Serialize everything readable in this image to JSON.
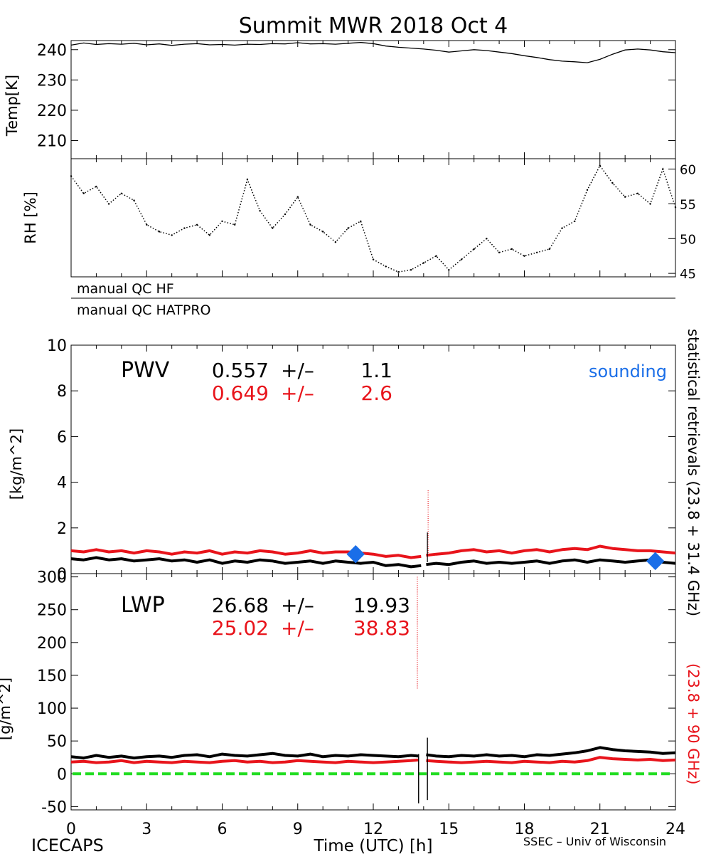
{
  "title": "Summit MWR 2018 Oct  4",
  "footer": {
    "left": "ICECAPS",
    "right": "SSEC – Univ of Wisconsin"
  },
  "right_labels": {
    "black": "statistical retrievals (23.8 + 31.4 GHz)",
    "red": "(23.8 + 90 GHz)"
  },
  "qc_rows": [
    "manual QC HF",
    "manual QC HATPRO"
  ],
  "colors": {
    "black": "#000000",
    "red": "#e8141b",
    "green": "#22dd22",
    "blue": "#1a6ee8"
  },
  "chart_data": [
    {
      "type": "line",
      "panel": "temperature",
      "ylabel": "Temp[K]",
      "ylim": [
        204,
        243
      ],
      "yticks": [
        210,
        220,
        230,
        240
      ],
      "xlim": [
        0,
        24
      ],
      "series": [
        {
          "color": "black",
          "x": [
            0,
            0.5,
            1,
            1.5,
            2,
            2.5,
            3,
            3.5,
            4,
            4.5,
            5,
            5.5,
            6,
            6.5,
            7,
            7.5,
            8,
            8.5,
            9,
            9.5,
            10,
            10.5,
            11,
            11.5,
            12,
            12.5,
            13,
            13.5,
            14,
            14.5,
            15,
            15.5,
            16,
            16.5,
            17,
            17.5,
            18,
            18.5,
            19,
            19.5,
            20,
            20.5,
            21,
            21.5,
            22,
            22.5,
            23,
            23.5,
            24
          ],
          "y": [
            241.5,
            242.2,
            241.7,
            242.0,
            241.8,
            242.1,
            241.6,
            241.9,
            241.4,
            241.8,
            242.0,
            241.6,
            241.7,
            241.5,
            241.8,
            241.7,
            242.0,
            241.9,
            242.3,
            241.9,
            242.0,
            241.8,
            242.1,
            242.4,
            242.0,
            241.2,
            240.8,
            240.5,
            240.2,
            239.8,
            239.2,
            239.6,
            240.0,
            239.7,
            239.2,
            238.7,
            238.0,
            237.4,
            236.7,
            236.2,
            236.0,
            235.7,
            236.8,
            238.5,
            239.9,
            240.2,
            239.9,
            239.3,
            239.0
          ]
        }
      ]
    },
    {
      "type": "scatter",
      "panel": "relative humidity",
      "ylabel": "RH [%]",
      "ylim": [
        44.5,
        61.5
      ],
      "yticks": [
        45,
        50,
        55,
        60
      ],
      "xlim": [
        0,
        24
      ],
      "series": [
        {
          "color": "black",
          "x": [
            0,
            0.5,
            1,
            1.5,
            2,
            2.5,
            3,
            3.5,
            4,
            4.5,
            5,
            5.5,
            6,
            6.5,
            7,
            7.5,
            8,
            8.5,
            9,
            9.5,
            10,
            10.5,
            11,
            11.5,
            12,
            12.5,
            13,
            13.5,
            14,
            14.5,
            15,
            15.5,
            16,
            16.5,
            17,
            17.5,
            18,
            18.5,
            19,
            19.5,
            20,
            20.5,
            21,
            21.5,
            22,
            22.5,
            23,
            23.5,
            24
          ],
          "y": [
            59.0,
            56.5,
            57.5,
            55.0,
            56.5,
            55.5,
            52.0,
            51.0,
            50.5,
            51.5,
            52.0,
            50.5,
            52.5,
            52.0,
            58.5,
            54.0,
            51.5,
            53.5,
            56.0,
            52.0,
            51.0,
            49.5,
            51.5,
            52.5,
            47.0,
            46.0,
            45.2,
            45.5,
            46.5,
            47.5,
            45.5,
            47.0,
            48.5,
            50.0,
            48.0,
            48.5,
            47.5,
            48.0,
            48.5,
            51.5,
            52.5,
            57.0,
            60.5,
            58.0,
            56.0,
            56.5,
            55.0,
            60.0,
            54.5
          ]
        }
      ]
    },
    {
      "type": "line",
      "panel": "PWV",
      "label": "PWV",
      "ylabel": "[kg/m^2]",
      "ylim": [
        0,
        10
      ],
      "yticks": [
        0,
        2,
        4,
        6,
        8,
        10
      ],
      "xlim": [
        0,
        24
      ],
      "stats": [
        {
          "color": "black",
          "mean": "0.557",
          "pm": "+/–",
          "sd": "1.1"
        },
        {
          "color": "red",
          "mean": "0.649",
          "pm": "+/–",
          "sd": "2.6"
        }
      ],
      "legend": {
        "text": "sounding",
        "color": "blue",
        "position": "top-right"
      },
      "gap": [
        13.9,
        14.1
      ],
      "spike": {
        "x": 14.15,
        "black_max": 1.8,
        "red_max": 3.7
      },
      "series": [
        {
          "color": "black",
          "x": [
            0,
            0.5,
            1,
            1.5,
            2,
            2.5,
            3,
            3.5,
            4,
            4.5,
            5,
            5.5,
            6,
            6.5,
            7,
            7.5,
            8,
            8.5,
            9,
            9.5,
            10,
            10.5,
            11,
            11.5,
            12,
            12.5,
            13,
            13.5,
            13.9,
            14.1,
            14.5,
            15,
            15.5,
            16,
            16.5,
            17,
            17.5,
            18,
            18.5,
            19,
            19.5,
            20,
            20.5,
            21,
            21.5,
            22,
            22.5,
            23,
            23.5,
            24
          ],
          "y": [
            0.65,
            0.6,
            0.7,
            0.6,
            0.65,
            0.55,
            0.6,
            0.65,
            0.55,
            0.6,
            0.5,
            0.6,
            0.45,
            0.55,
            0.5,
            0.6,
            0.55,
            0.45,
            0.5,
            0.55,
            0.45,
            0.55,
            0.5,
            0.45,
            0.5,
            0.35,
            0.4,
            0.3,
            0.35,
            0.4,
            0.45,
            0.4,
            0.5,
            0.55,
            0.45,
            0.5,
            0.45,
            0.5,
            0.55,
            0.45,
            0.55,
            0.6,
            0.5,
            0.6,
            0.55,
            0.5,
            0.55,
            0.6,
            0.5,
            0.45
          ]
        },
        {
          "color": "red",
          "x": [
            0,
            0.5,
            1,
            1.5,
            2,
            2.5,
            3,
            3.5,
            4,
            4.5,
            5,
            5.5,
            6,
            6.5,
            7,
            7.5,
            8,
            8.5,
            9,
            9.5,
            10,
            10.5,
            11,
            11.5,
            12,
            12.5,
            13,
            13.5,
            13.9,
            14.1,
            14.5,
            15,
            15.5,
            16,
            16.5,
            17,
            17.5,
            18,
            18.5,
            19,
            19.5,
            20,
            20.5,
            21,
            21.5,
            22,
            22.5,
            23,
            23.5,
            24
          ],
          "y": [
            1.0,
            0.95,
            1.05,
            0.95,
            1.0,
            0.9,
            1.0,
            0.95,
            0.85,
            0.95,
            0.9,
            1.0,
            0.85,
            0.95,
            0.9,
            1.0,
            0.95,
            0.85,
            0.9,
            1.0,
            0.9,
            0.95,
            0.95,
            0.9,
            0.85,
            0.75,
            0.8,
            0.7,
            0.75,
            0.8,
            0.85,
            0.9,
            1.0,
            1.05,
            0.95,
            1.0,
            0.9,
            1.0,
            1.05,
            0.95,
            1.05,
            1.1,
            1.05,
            1.2,
            1.1,
            1.05,
            1.0,
            1.0,
            0.95,
            0.9
          ]
        },
        {
          "name": "sounding",
          "color": "blue",
          "type": "points",
          "x": [
            11.3,
            23.2
          ],
          "y": [
            0.85,
            0.55
          ]
        }
      ]
    },
    {
      "type": "line",
      "panel": "LWP",
      "label": "LWP",
      "ylabel": "[g/m^2]",
      "ylim": [
        -55,
        305
      ],
      "yticks": [
        -50,
        0,
        50,
        100,
        150,
        200,
        250,
        300
      ],
      "xlim": [
        0,
        24
      ],
      "xticks": [
        0,
        3,
        6,
        9,
        12,
        15,
        18,
        21,
        24
      ],
      "xlabel": "Time (UTC) [h]",
      "stats": [
        {
          "color": "black",
          "mean": "26.68",
          "pm": "+/–",
          "sd": "19.93"
        },
        {
          "color": "red",
          "mean": "25.02",
          "pm": "+/–",
          "sd": "38.83"
        }
      ],
      "zero_line": {
        "y": 0,
        "color": "green",
        "style": "dashed"
      },
      "gap": [
        13.8,
        14.1
      ],
      "spikes": [
        {
          "x": 13.75,
          "color": "red",
          "ymin": 130,
          "ymax": 300
        },
        {
          "x": 13.8,
          "color": "black",
          "ymin": -45,
          "ymax": 30
        },
        {
          "x": 14.15,
          "color": "black",
          "ymin": -40,
          "ymax": 55
        }
      ],
      "series": [
        {
          "color": "black",
          "x": [
            0,
            0.5,
            1,
            1.5,
            2,
            2.5,
            3,
            3.5,
            4,
            4.5,
            5,
            5.5,
            6,
            6.5,
            7,
            7.5,
            8,
            8.5,
            9,
            9.5,
            10,
            10.5,
            11,
            11.5,
            12,
            12.5,
            13,
            13.5,
            13.8,
            14.1,
            14.5,
            15,
            15.5,
            16,
            16.5,
            17,
            17.5,
            18,
            18.5,
            19,
            19.5,
            20,
            20.5,
            21,
            21.5,
            22,
            22.5,
            23,
            23.5,
            24
          ],
          "y": [
            26,
            24,
            28,
            25,
            27,
            24,
            26,
            27,
            25,
            28,
            29,
            26,
            30,
            28,
            27,
            29,
            31,
            28,
            27,
            30,
            26,
            28,
            27,
            29,
            28,
            27,
            26,
            28,
            27,
            29,
            27,
            26,
            28,
            27,
            29,
            27,
            28,
            26,
            29,
            28,
            30,
            32,
            35,
            40,
            37,
            35,
            34,
            33,
            31,
            32
          ]
        },
        {
          "color": "red",
          "x": [
            0,
            0.5,
            1,
            1.5,
            2,
            2.5,
            3,
            3.5,
            4,
            4.5,
            5,
            5.5,
            6,
            6.5,
            7,
            7.5,
            8,
            8.5,
            9,
            9.5,
            10,
            10.5,
            11,
            11.5,
            12,
            12.5,
            13,
            13.5,
            13.8,
            14.1,
            14.5,
            15,
            15.5,
            16,
            16.5,
            17,
            17.5,
            18,
            18.5,
            19,
            19.5,
            20,
            20.5,
            21,
            21.5,
            22,
            22.5,
            23,
            23.5,
            24
          ],
          "y": [
            18,
            19,
            17,
            18,
            20,
            17,
            19,
            18,
            17,
            19,
            18,
            17,
            19,
            20,
            18,
            19,
            17,
            18,
            20,
            19,
            18,
            17,
            19,
            18,
            17,
            18,
            19,
            20,
            21,
            20,
            19,
            18,
            17,
            18,
            19,
            18,
            17,
            19,
            18,
            17,
            19,
            18,
            20,
            25,
            23,
            22,
            21,
            22,
            20,
            21
          ]
        }
      ]
    }
  ]
}
